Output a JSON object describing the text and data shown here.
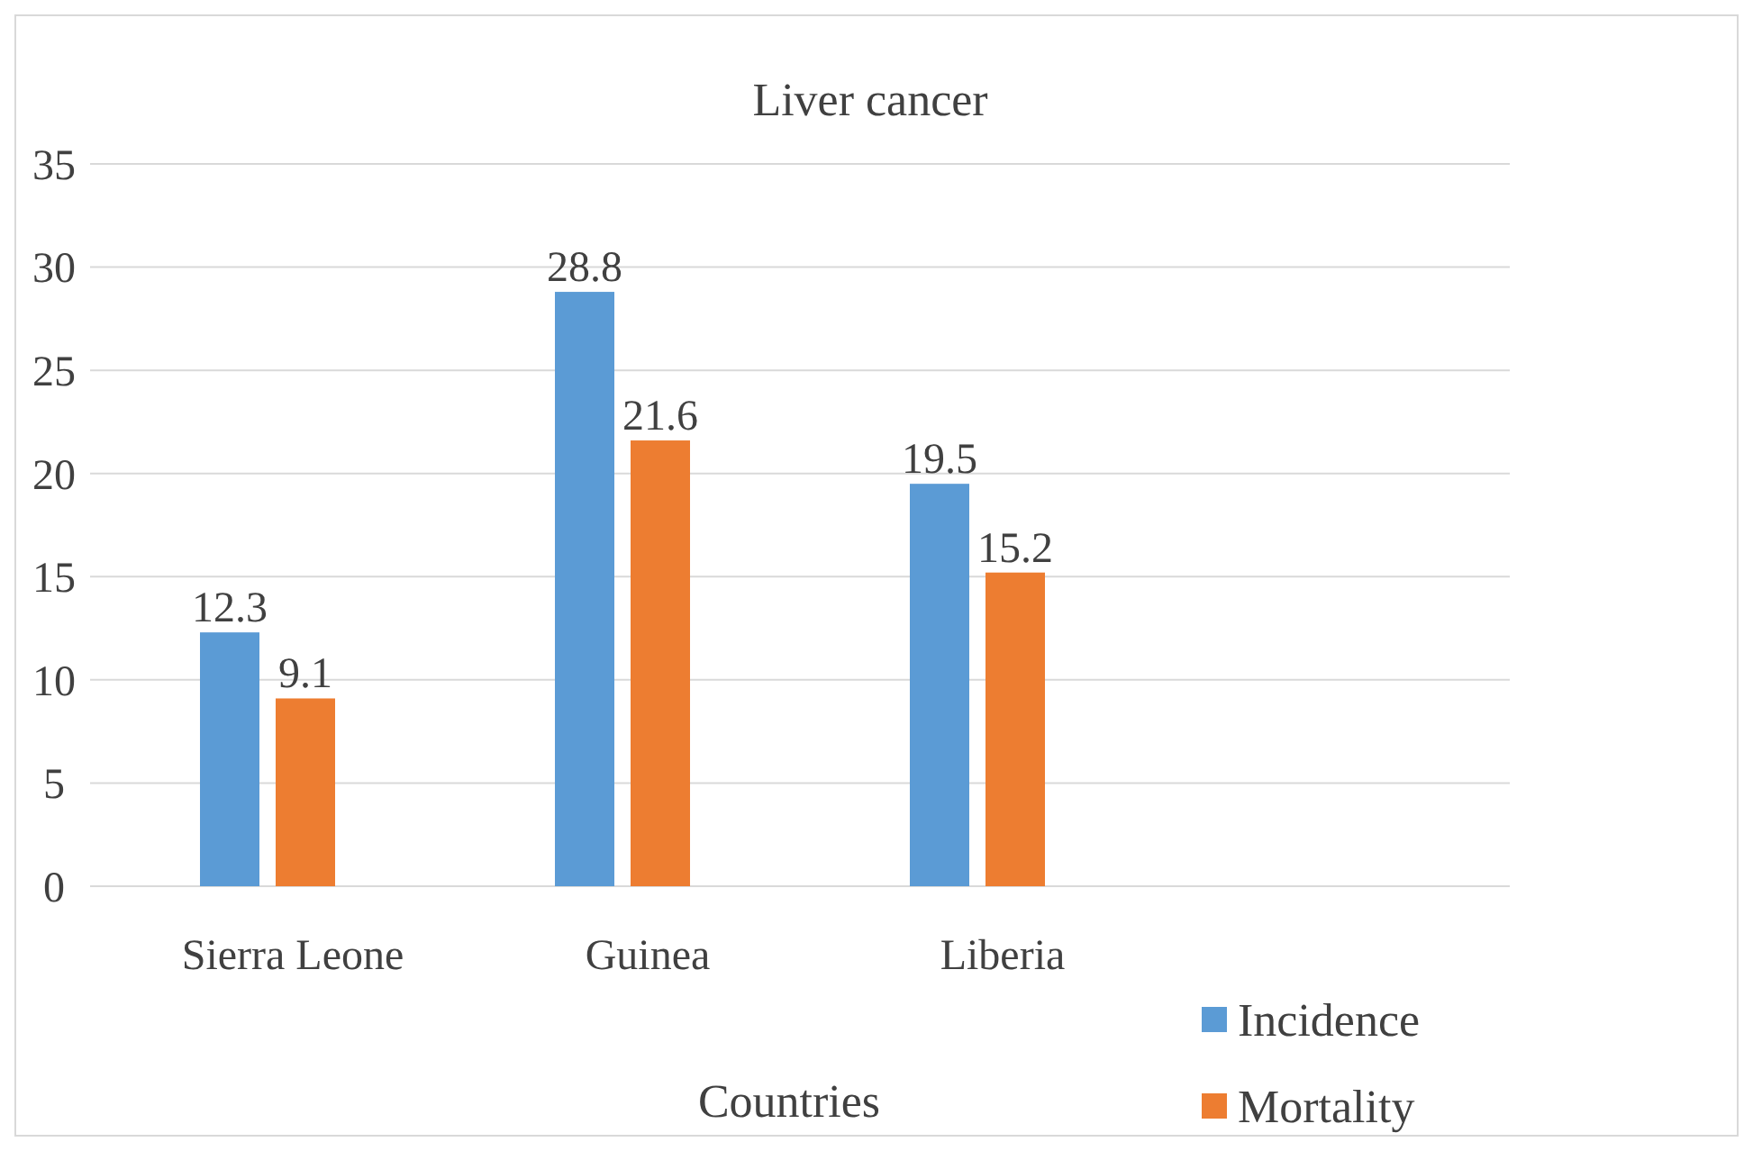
{
  "chart_data": {
    "type": "bar",
    "title": "Liver cancer",
    "xlabel": "Countries",
    "categories": [
      "Sierra Leone",
      "Guinea",
      "Liberia",
      null
    ],
    "series": [
      {
        "name": "Incidence",
        "color": "#5b9bd5",
        "values": [
          12.3,
          28.8,
          19.5,
          null
        ]
      },
      {
        "name": "Mortality",
        "color": "#ed7d31",
        "values": [
          9.1,
          21.6,
          15.2,
          null
        ]
      }
    ],
    "ylim": [
      0,
      35
    ],
    "yticks": [
      0,
      5,
      10,
      15,
      20,
      25,
      30,
      35
    ],
    "grid": "y",
    "legend": "bottom right",
    "data_labels": true
  }
}
